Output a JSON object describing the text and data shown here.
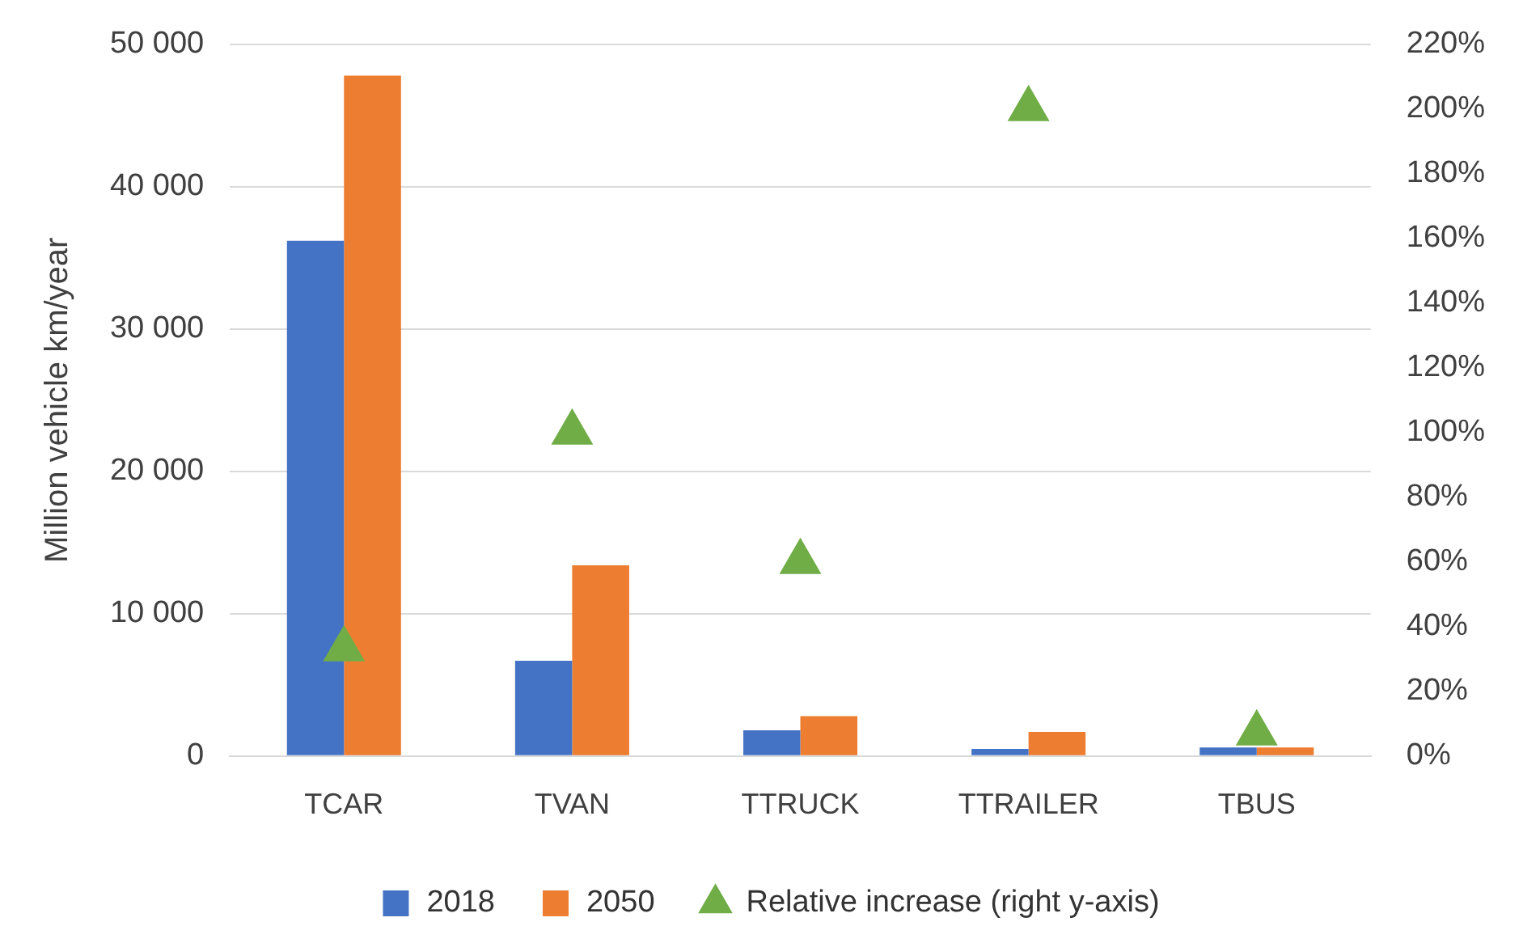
{
  "chart_data": {
    "type": "bar",
    "ylabel": "Million vehicle km/year",
    "categories": [
      "TCAR",
      "TVAN",
      "TTRUCK",
      "TTRAILER",
      "TBUS"
    ],
    "series": [
      {
        "name": "2018",
        "color": "#4472c4",
        "values": [
          36200,
          6700,
          1800,
          500,
          600
        ]
      },
      {
        "name": "2050",
        "color": "#ed7d31",
        "values": [
          47800,
          13400,
          2800,
          1700,
          600
        ]
      },
      {
        "name": "Relative increase (right y-axis)",
        "type": "scatter",
        "axis": "y2",
        "color": "#70ad47",
        "marker": "triangle",
        "values": [
          33,
          100,
          60,
          200,
          7
        ]
      }
    ],
    "ylim": [
      0,
      50000
    ],
    "yticks": [
      {
        "value": 0,
        "label": "0"
      },
      {
        "value": 10000,
        "label": "10 000"
      },
      {
        "value": 20000,
        "label": "20 000"
      },
      {
        "value": 30000,
        "label": "30 000"
      },
      {
        "value": 40000,
        "label": "40 000"
      },
      {
        "value": 50000,
        "label": "50 000"
      }
    ],
    "y2lim": [
      0,
      220
    ],
    "y2ticks": [
      {
        "value": 0,
        "label": "0%"
      },
      {
        "value": 20,
        "label": "20%"
      },
      {
        "value": 40,
        "label": "40%"
      },
      {
        "value": 60,
        "label": "60%"
      },
      {
        "value": 80,
        "label": "80%"
      },
      {
        "value": 100,
        "label": "100%"
      },
      {
        "value": 120,
        "label": "120%"
      },
      {
        "value": 140,
        "label": "140%"
      },
      {
        "value": 160,
        "label": "160%"
      },
      {
        "value": 180,
        "label": "180%"
      },
      {
        "value": 200,
        "label": "200%"
      },
      {
        "value": 220,
        "label": "220%"
      }
    ],
    "grid": "y",
    "legend": "bottom"
  }
}
